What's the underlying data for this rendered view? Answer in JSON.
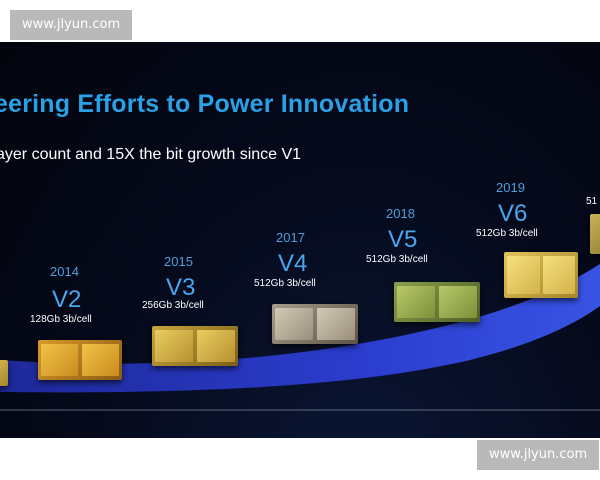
{
  "watermark": {
    "text": "www.jlyun.com"
  },
  "slide": {
    "title": "eering Efforts to Power Innovation",
    "subtitle": "ayer count and 15X the bit growth since V1",
    "generations": [
      {
        "year": "2014",
        "version": "V2",
        "capacity": "128Gb 3b/cell"
      },
      {
        "year": "2015",
        "version": "V3",
        "capacity": "256Gb 3b/cell"
      },
      {
        "year": "2017",
        "version": "V4",
        "capacity": "512Gb 3b/cell"
      },
      {
        "year": "2018",
        "version": "V5",
        "capacity": "512Gb 3b/cell"
      },
      {
        "year": "2019",
        "version": "V6",
        "capacity": "512Gb 3b/cell"
      }
    ],
    "partial_label": "51",
    "colors": {
      "title": "#2aa0e6",
      "version": "#4aa6ee",
      "year": "#4e9fdc",
      "band": "#2d3fd6",
      "background": "#05091a"
    }
  }
}
